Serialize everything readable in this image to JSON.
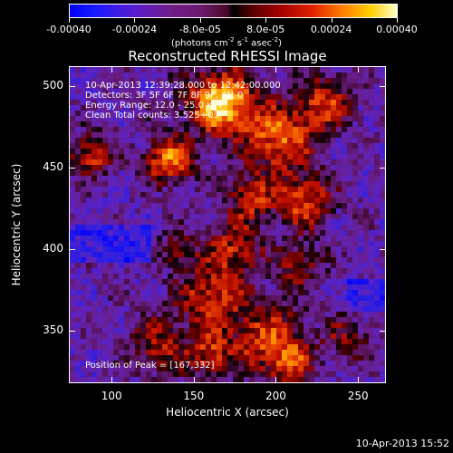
{
  "colorbar": {
    "tick_labels": [
      "-0.00040",
      "-0.00024",
      "-8.0e-05",
      "8.0e-05",
      "0.00024",
      "0.00040"
    ],
    "units_prefix": "(photons cm",
    "units_sup1": "-2",
    "units_mid": " s",
    "units_sup2": "-1",
    "units_mid2": " asec",
    "units_sup3": "-2",
    "units_suffix": ")",
    "range": [
      -0.0004,
      0.0004
    ]
  },
  "title": "Reconstructed RHESSI Image",
  "info": {
    "time_range": "10-Apr-2013 12:39:28.000 to 12:42:00.000",
    "detectors": "Detectors: 3F 5F 6F 7F 8F 9F, Att 0",
    "energy": "Energy Range: 12.0 - 25.0 keV",
    "clean": "Clean     Total counts: 3.525+03",
    "peak": "Position of Peak = [167,332]"
  },
  "axes": {
    "xlabel": "Heliocentric X (arcsec)",
    "ylabel": "Heliocentric Y (arcsec)",
    "xticks": [
      "100",
      "150",
      "200",
      "250"
    ],
    "yticks": [
      "350",
      "400",
      "450",
      "500"
    ],
    "xlim": [
      74,
      267
    ],
    "ylim": [
      318,
      512
    ]
  },
  "timestamp": "10-Apr-2013 15:52",
  "colors": {
    "background": "#000000",
    "foreground": "#ffffff"
  }
}
